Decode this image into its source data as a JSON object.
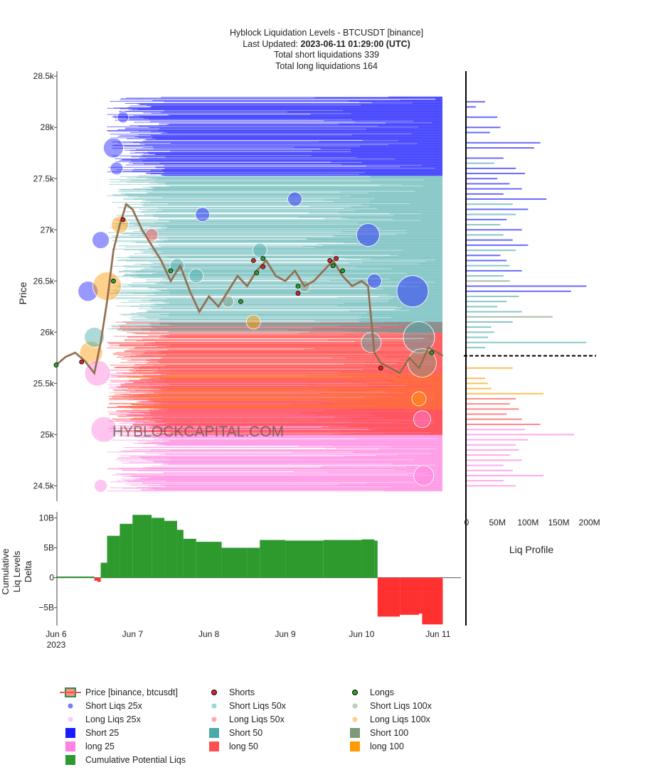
{
  "header": {
    "title_line1": "Hyblock Liquidation Levels - BTCUSDT [binance]",
    "updated_label": "Last Updated: ",
    "updated_value": "2023-06-11 01:29:00 (UTC)",
    "short_total": "Total short liquidations 339",
    "long_total": "Total long liquidations 164"
  },
  "watermark": "HYBLOCKCAPITAL.COM",
  "colors": {
    "short25": "#1a1aff",
    "short50": "#4aaaaa",
    "short100": "#7f9a7a",
    "long25": "#ff7ee0",
    "long50": "#ff4a4a",
    "long100": "#ff9a00",
    "cum_pos": "#2e9a2e",
    "cum_neg": "#ff3030",
    "price_up": "#2e8b57",
    "price_down": "#e8584a",
    "shorts_dot": "#d62728",
    "longs_dot": "#2ca02c"
  },
  "chart_data": [
    {
      "type": "scatter",
      "name": "main",
      "ylabel": "Price",
      "ylim": [
        24350,
        28550
      ],
      "yticks": [
        24500,
        25000,
        25500,
        26000,
        26500,
        27000,
        27500,
        28000,
        28500
      ],
      "ytick_labels": [
        "24.5k",
        "25k",
        "25.5k",
        "26k",
        "26.5k",
        "27k",
        "27.5k",
        "28k",
        "28.5k"
      ],
      "xlim": [
        "2023-06-05T22:00",
        "2023-06-11T02:30"
      ],
      "xticks": [
        "2023-06-06",
        "2023-06-07",
        "2023-06-08",
        "2023-06-09",
        "2023-06-10",
        "2023-06-11"
      ],
      "xtick_labels": [
        "Jun 6",
        "Jun 7",
        "Jun 8",
        "Jun 9",
        "Jun 10",
        "Jun 11"
      ],
      "x_year_label": "2023",
      "current_price": 25770,
      "price": [
        [
          "2023-06-06T00:00",
          25680
        ],
        [
          "2023-06-06T03:00",
          25760
        ],
        [
          "2023-06-06T06:00",
          25800
        ],
        [
          "2023-06-06T09:00",
          25720
        ],
        [
          "2023-06-06T12:00",
          25600
        ],
        [
          "2023-06-06T14:00",
          25900
        ],
        [
          "2023-06-06T16:00",
          26300
        ],
        [
          "2023-06-06T18:00",
          26800
        ],
        [
          "2023-06-06T20:00",
          27050
        ],
        [
          "2023-06-06T22:00",
          27250
        ],
        [
          "2023-06-07T00:00",
          27200
        ],
        [
          "2023-06-07T03:00",
          27000
        ],
        [
          "2023-06-07T06:00",
          26850
        ],
        [
          "2023-06-07T09:00",
          26700
        ],
        [
          "2023-06-07T12:00",
          26500
        ],
        [
          "2023-06-07T15:00",
          26650
        ],
        [
          "2023-06-07T18:00",
          26400
        ],
        [
          "2023-06-07T21:00",
          26200
        ],
        [
          "2023-06-08T00:00",
          26350
        ],
        [
          "2023-06-08T03:00",
          26250
        ],
        [
          "2023-06-08T06:00",
          26400
        ],
        [
          "2023-06-08T09:00",
          26550
        ],
        [
          "2023-06-08T12:00",
          26450
        ],
        [
          "2023-06-08T15:00",
          26600
        ],
        [
          "2023-06-08T18:00",
          26700
        ],
        [
          "2023-06-08T21:00",
          26550
        ],
        [
          "2023-06-09T00:00",
          26500
        ],
        [
          "2023-06-09T03:00",
          26600
        ],
        [
          "2023-06-09T06:00",
          26450
        ],
        [
          "2023-06-09T09:00",
          26500
        ],
        [
          "2023-06-09T12:00",
          26600
        ],
        [
          "2023-06-09T15:00",
          26700
        ],
        [
          "2023-06-09T18:00",
          26550
        ],
        [
          "2023-06-09T21:00",
          26450
        ],
        [
          "2023-06-10T00:00",
          26500
        ],
        [
          "2023-06-10T02:00",
          26450
        ],
        [
          "2023-06-10T04:00",
          25800
        ],
        [
          "2023-06-10T06:00",
          25700
        ],
        [
          "2023-06-10T09:00",
          25650
        ],
        [
          "2023-06-10T12:00",
          25600
        ],
        [
          "2023-06-10T15:00",
          25750
        ],
        [
          "2023-06-10T18:00",
          25650
        ],
        [
          "2023-06-10T21:00",
          25850
        ],
        [
          "2023-06-11T00:00",
          25800
        ],
        [
          "2023-06-11T01:29",
          25770
        ]
      ],
      "shorts_markers": [
        [
          "2023-06-06T08:00",
          25710
        ],
        [
          "2023-06-06T21:00",
          27100
        ],
        [
          "2023-06-08T14:00",
          26700
        ],
        [
          "2023-06-08T17:00",
          26640
        ],
        [
          "2023-06-09T04:00",
          26380
        ],
        [
          "2023-06-09T14:00",
          26700
        ],
        [
          "2023-06-09T16:00",
          26720
        ],
        [
          "2023-06-10T06:00",
          25650
        ]
      ],
      "longs_markers": [
        [
          "2023-06-06T00:00",
          25680
        ],
        [
          "2023-06-06T18:00",
          26500
        ],
        [
          "2023-06-07T12:00",
          26600
        ],
        [
          "2023-06-08T10:00",
          26300
        ],
        [
          "2023-06-08T15:00",
          26580
        ],
        [
          "2023-06-08T17:00",
          26720
        ],
        [
          "2023-06-09T04:00",
          26450
        ],
        [
          "2023-06-09T15:00",
          26650
        ],
        [
          "2023-06-09T18:00",
          26600
        ],
        [
          "2023-06-10T22:00",
          25800
        ]
      ],
      "liq_bands": {
        "short25": [
          [
            27530,
            28300
          ]
        ],
        "short50": [
          [
            26000,
            27530
          ]
        ],
        "long50": [
          [
            25000,
            26100
          ]
        ],
        "long25": [
          [
            24450,
            25600
          ]
        ],
        "long100": [
          [
            25250,
            25600
          ]
        ]
      },
      "bubbles": [
        [
          "2023-06-06T10:00",
          26400,
          14,
          "short25"
        ],
        [
          "2023-06-06T11:00",
          25800,
          16,
          "long100"
        ],
        [
          "2023-06-06T12:00",
          25950,
          14,
          "short50"
        ],
        [
          "2023-06-06T13:00",
          25600,
          18,
          "long25"
        ],
        [
          "2023-06-06T14:00",
          26900,
          12,
          "short25"
        ],
        [
          "2023-06-06T15:00",
          25050,
          18,
          "long25"
        ],
        [
          "2023-06-06T16:00",
          26450,
          20,
          "long100"
        ],
        [
          "2023-06-06T18:00",
          27800,
          14,
          "short25"
        ],
        [
          "2023-06-06T19:00",
          27600,
          9,
          "short25"
        ],
        [
          "2023-06-06T20:00",
          27050,
          12,
          "long100"
        ],
        [
          "2023-06-06T21:00",
          28100,
          8,
          "short25"
        ],
        [
          "2023-06-07T06:00",
          26950,
          9,
          "long50"
        ],
        [
          "2023-06-07T14:00",
          26650,
          10,
          "short50"
        ],
        [
          "2023-06-07T20:00",
          26550,
          10,
          "short50"
        ],
        [
          "2023-06-07T22:00",
          27150,
          10,
          "short25"
        ],
        [
          "2023-06-08T06:00",
          26300,
          8,
          "short100"
        ],
        [
          "2023-06-08T14:00",
          26100,
          10,
          "long100"
        ],
        [
          "2023-06-08T16:00",
          26800,
          10,
          "short50"
        ],
        [
          "2023-06-09T03:00",
          27300,
          10,
          "short25"
        ],
        [
          "2023-06-09T06:00",
          26450,
          8,
          "short100"
        ],
        [
          "2023-06-10T02:00",
          26950,
          16,
          "short25"
        ],
        [
          "2023-06-10T03:00",
          25900,
          14,
          "short50"
        ],
        [
          "2023-06-10T04:00",
          26500,
          10,
          "short25"
        ],
        [
          "2023-06-10T16:00",
          26400,
          22,
          "short25"
        ],
        [
          "2023-06-10T18:00",
          25950,
          22,
          "short50"
        ],
        [
          "2023-06-10T19:00",
          25700,
          20,
          "short100"
        ],
        [
          "2023-06-10T19:00",
          25150,
          12,
          "long25"
        ],
        [
          "2023-06-10T19:30",
          24600,
          14,
          "long25"
        ],
        [
          "2023-06-10T18:00",
          25350,
          10,
          "long100"
        ],
        [
          "2023-06-06T14:00",
          24500,
          9,
          "long25"
        ]
      ]
    },
    {
      "type": "area",
      "name": "cumulative",
      "ylabel": "Cumulative Liq Levels Delta",
      "ylabel_lines": [
        "Cumulative",
        "Liq Levels",
        "Delta"
      ],
      "ylim": [
        -8000000000,
        11000000000
      ],
      "yticks": [
        -5000000000,
        0,
        5000000000,
        10000000000
      ],
      "ytick_labels": [
        "−5B",
        "0",
        "5B",
        "10B"
      ],
      "x": [
        "2023-06-06T00:00",
        "2023-06-06T10:00",
        "2023-06-06T12:00",
        "2023-06-06T13:00",
        "2023-06-06T14:00",
        "2023-06-06T16:00",
        "2023-06-06T20:00",
        "2023-06-07T00:00",
        "2023-06-07T06:00",
        "2023-06-07T10:00",
        "2023-06-07T14:00",
        "2023-06-07T16:00",
        "2023-06-07T20:00",
        "2023-06-08T04:00",
        "2023-06-08T12:00",
        "2023-06-08T16:00",
        "2023-06-09T00:00",
        "2023-06-09T12:00",
        "2023-06-10T00:00",
        "2023-06-10T04:00",
        "2023-06-10T05:00",
        "2023-06-10T12:00",
        "2023-06-10T18:00",
        "2023-06-10T19:00",
        "2023-06-11T01:29"
      ],
      "values": [
        200000000,
        200000000,
        -500000000,
        -700000000,
        2500000000,
        7000000000,
        9000000000,
        10500000000,
        10000000000,
        9500000000,
        8000000000,
        6500000000,
        6000000000,
        5000000000,
        5000000000,
        6300000000,
        6200000000,
        6300000000,
        6400000000,
        6200000000,
        -6500000000,
        -6200000000,
        -6000000000,
        -7800000000,
        -7600000000
      ]
    },
    {
      "type": "bar",
      "name": "liq_profile",
      "orientation": "horizontal",
      "xlabel": "Liq Profile",
      "xlim": [
        0,
        205000000
      ],
      "xticks": [
        0,
        50000000,
        100000000,
        150000000,
        200000000
      ],
      "xtick_labels": [
        "0",
        "50M",
        "100M",
        "150M",
        "200M"
      ],
      "bars": [
        [
          28250,
          30000000,
          "short25"
        ],
        [
          28200,
          15000000,
          "short25"
        ],
        [
          28100,
          50000000,
          "short25"
        ],
        [
          28000,
          55000000,
          "short25"
        ],
        [
          27950,
          38000000,
          "short25"
        ],
        [
          27850,
          120000000,
          "short25"
        ],
        [
          27800,
          110000000,
          "short25"
        ],
        [
          27700,
          60000000,
          "short25"
        ],
        [
          27650,
          45000000,
          "short50"
        ],
        [
          27600,
          80000000,
          "short25"
        ],
        [
          27550,
          95000000,
          "short25"
        ],
        [
          27500,
          50000000,
          "short25"
        ],
        [
          27450,
          70000000,
          "short25"
        ],
        [
          27400,
          90000000,
          "short25"
        ],
        [
          27350,
          60000000,
          "short25"
        ],
        [
          27300,
          130000000,
          "short25"
        ],
        [
          27250,
          75000000,
          "short50"
        ],
        [
          27200,
          100000000,
          "short25"
        ],
        [
          27150,
          80000000,
          "short50"
        ],
        [
          27100,
          65000000,
          "short25"
        ],
        [
          27050,
          55000000,
          "short50"
        ],
        [
          27000,
          90000000,
          "short25"
        ],
        [
          26950,
          60000000,
          "short50"
        ],
        [
          26900,
          75000000,
          "short25"
        ],
        [
          26850,
          100000000,
          "short25"
        ],
        [
          26800,
          80000000,
          "short50"
        ],
        [
          26750,
          55000000,
          "short25"
        ],
        [
          26700,
          65000000,
          "short25"
        ],
        [
          26650,
          70000000,
          "short50"
        ],
        [
          26600,
          90000000,
          "short25"
        ],
        [
          26550,
          60000000,
          "short50"
        ],
        [
          26500,
          70000000,
          "short100"
        ],
        [
          26450,
          195000000,
          "short25"
        ],
        [
          26400,
          170000000,
          "short25"
        ],
        [
          26350,
          85000000,
          "short50"
        ],
        [
          26300,
          65000000,
          "short50"
        ],
        [
          26250,
          50000000,
          "short50"
        ],
        [
          26200,
          90000000,
          "short50"
        ],
        [
          26150,
          140000000,
          "short100"
        ],
        [
          26100,
          75000000,
          "short50"
        ],
        [
          26050,
          40000000,
          "short50"
        ],
        [
          26000,
          45000000,
          "short50"
        ],
        [
          25950,
          35000000,
          "short50"
        ],
        [
          25900,
          195000000,
          "short50"
        ],
        [
          25850,
          30000000,
          "short50"
        ],
        [
          25650,
          75000000,
          "long100"
        ],
        [
          25550,
          30000000,
          "long100"
        ],
        [
          25500,
          35000000,
          "long100"
        ],
        [
          25450,
          40000000,
          "long100"
        ],
        [
          25400,
          125000000,
          "long100"
        ],
        [
          25350,
          80000000,
          "long50"
        ],
        [
          25300,
          70000000,
          "long50"
        ],
        [
          25250,
          85000000,
          "long50"
        ],
        [
          25200,
          65000000,
          "long50"
        ],
        [
          25150,
          90000000,
          "long50"
        ],
        [
          25100,
          120000000,
          "long50"
        ],
        [
          25050,
          95000000,
          "long25"
        ],
        [
          25000,
          175000000,
          "long25"
        ],
        [
          24950,
          100000000,
          "long25"
        ],
        [
          24900,
          80000000,
          "long25"
        ],
        [
          24850,
          85000000,
          "long25"
        ],
        [
          24800,
          70000000,
          "long25"
        ],
        [
          24750,
          90000000,
          "long25"
        ],
        [
          24700,
          60000000,
          "long25"
        ],
        [
          24650,
          75000000,
          "long25"
        ],
        [
          24600,
          125000000,
          "long25"
        ],
        [
          24550,
          60000000,
          "long25"
        ],
        [
          24500,
          80000000,
          "long25"
        ]
      ]
    }
  ],
  "legend": [
    {
      "label": "Price [binance, btcusdt]",
      "kind": "price"
    },
    {
      "label": "Shorts",
      "kind": "dot",
      "color": "#d62728"
    },
    {
      "label": "Longs",
      "kind": "dot",
      "color": "#2ca02c"
    },
    {
      "label": "Short Liqs 25x",
      "kind": "dot",
      "color": "#7a7aff"
    },
    {
      "label": "Short Liqs 50x",
      "kind": "dot",
      "color": "#9fd4d4"
    },
    {
      "label": "Short Liqs 100x",
      "kind": "dot",
      "color": "#c4c8c0"
    },
    {
      "label": "Long Liqs 25x",
      "kind": "dot",
      "color": "#ffc8f2"
    },
    {
      "label": "Long Liqs 50x",
      "kind": "dot",
      "color": "#ffaaaa"
    },
    {
      "label": "Long Liqs 100x",
      "kind": "dot",
      "color": "#ffd08a"
    },
    {
      "label": "Short 25",
      "kind": "square",
      "color": "#1a1aff"
    },
    {
      "label": "Short 50",
      "kind": "square",
      "color": "#4aaaaa"
    },
    {
      "label": "Short 100",
      "kind": "square",
      "color": "#7f9a7a"
    },
    {
      "label": "long 25",
      "kind": "square",
      "color": "#ff80e0"
    },
    {
      "label": "long 50",
      "kind": "square",
      "color": "#ff5050"
    },
    {
      "label": "long 100",
      "kind": "square",
      "color": "#ff9a00"
    },
    {
      "label": "Cumulative Potential Liqs",
      "kind": "square",
      "color": "#2e9a2e"
    }
  ]
}
